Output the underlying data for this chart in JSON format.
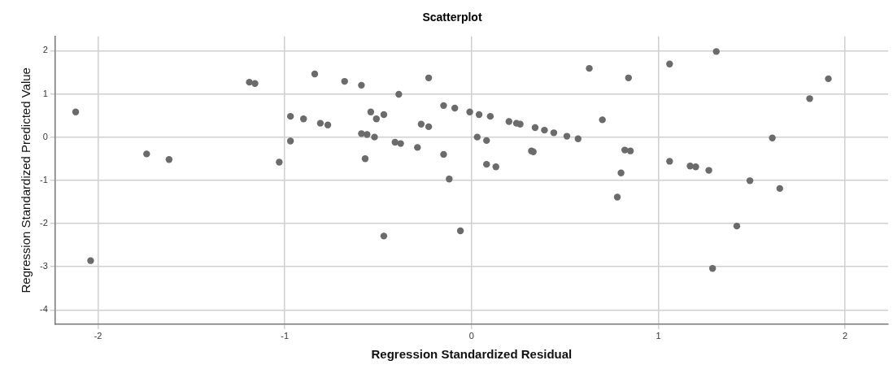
{
  "chart_data": {
    "type": "scatter",
    "title": "Scatterplot",
    "xlabel": "Regression Standardized Residual",
    "ylabel": "Regression Standardized Predicted Value",
    "xlim": [
      -2.23,
      2.23
    ],
    "xticks": [
      -2,
      -1,
      0,
      1,
      2
    ],
    "ylim": [
      -4.33,
      2.33
    ],
    "yticks": [
      -4,
      -3,
      -2,
      -1,
      0,
      1,
      2
    ],
    "grid": true,
    "legend": false,
    "marker": "circle",
    "series": [
      {
        "color": "#6b6b6b",
        "x": [
          -2.12,
          -2.04,
          -1.74,
          -1.62,
          -1.19,
          -1.16,
          -1.03,
          -0.97,
          -0.97,
          -0.9,
          -0.84,
          -0.81,
          -0.77,
          -0.68,
          -0.59,
          -0.59,
          -0.56,
          -0.57,
          -0.54,
          -0.51,
          -0.52,
          -0.47,
          -0.47,
          -0.39,
          -0.41,
          -0.38,
          -0.29,
          -0.27,
          -0.23,
          -0.23,
          -0.15,
          -0.15,
          -0.12,
          -0.09,
          -0.06,
          -0.01,
          0.03,
          0.04,
          0.08,
          0.1,
          0.08,
          0.13,
          0.2,
          0.24,
          0.26,
          0.34,
          0.39,
          0.44,
          0.51,
          0.57,
          0.32,
          0.33,
          0.63,
          0.7,
          0.84,
          0.82,
          0.85,
          0.8,
          0.78,
          1.06,
          1.31,
          1.06,
          1.17,
          1.2,
          1.27,
          1.29,
          1.42,
          1.49,
          1.61,
          1.65,
          1.81,
          1.91
        ],
        "values": [
          0.58,
          -2.86,
          -0.39,
          -0.52,
          1.27,
          1.24,
          -0.58,
          0.48,
          -0.09,
          0.42,
          1.46,
          0.32,
          0.28,
          1.29,
          1.2,
          0.08,
          0.06,
          -0.5,
          0.58,
          0.42,
          0.0,
          0.52,
          -2.29,
          0.99,
          -0.12,
          -0.15,
          -0.24,
          0.3,
          0.24,
          1.37,
          0.73,
          -0.4,
          -0.97,
          0.67,
          -2.17,
          0.58,
          0.0,
          0.52,
          -0.08,
          0.48,
          -0.63,
          -0.69,
          0.36,
          0.32,
          0.3,
          0.22,
          0.16,
          0.1,
          0.02,
          -0.04,
          -0.32,
          -0.34,
          1.59,
          0.4,
          1.37,
          -0.3,
          -0.32,
          -0.83,
          -1.39,
          1.69,
          1.98,
          -0.56,
          -0.67,
          -0.69,
          -0.77,
          -3.04,
          -2.06,
          -1.01,
          -0.02,
          -1.19,
          0.89,
          1.35
        ]
      }
    ]
  }
}
